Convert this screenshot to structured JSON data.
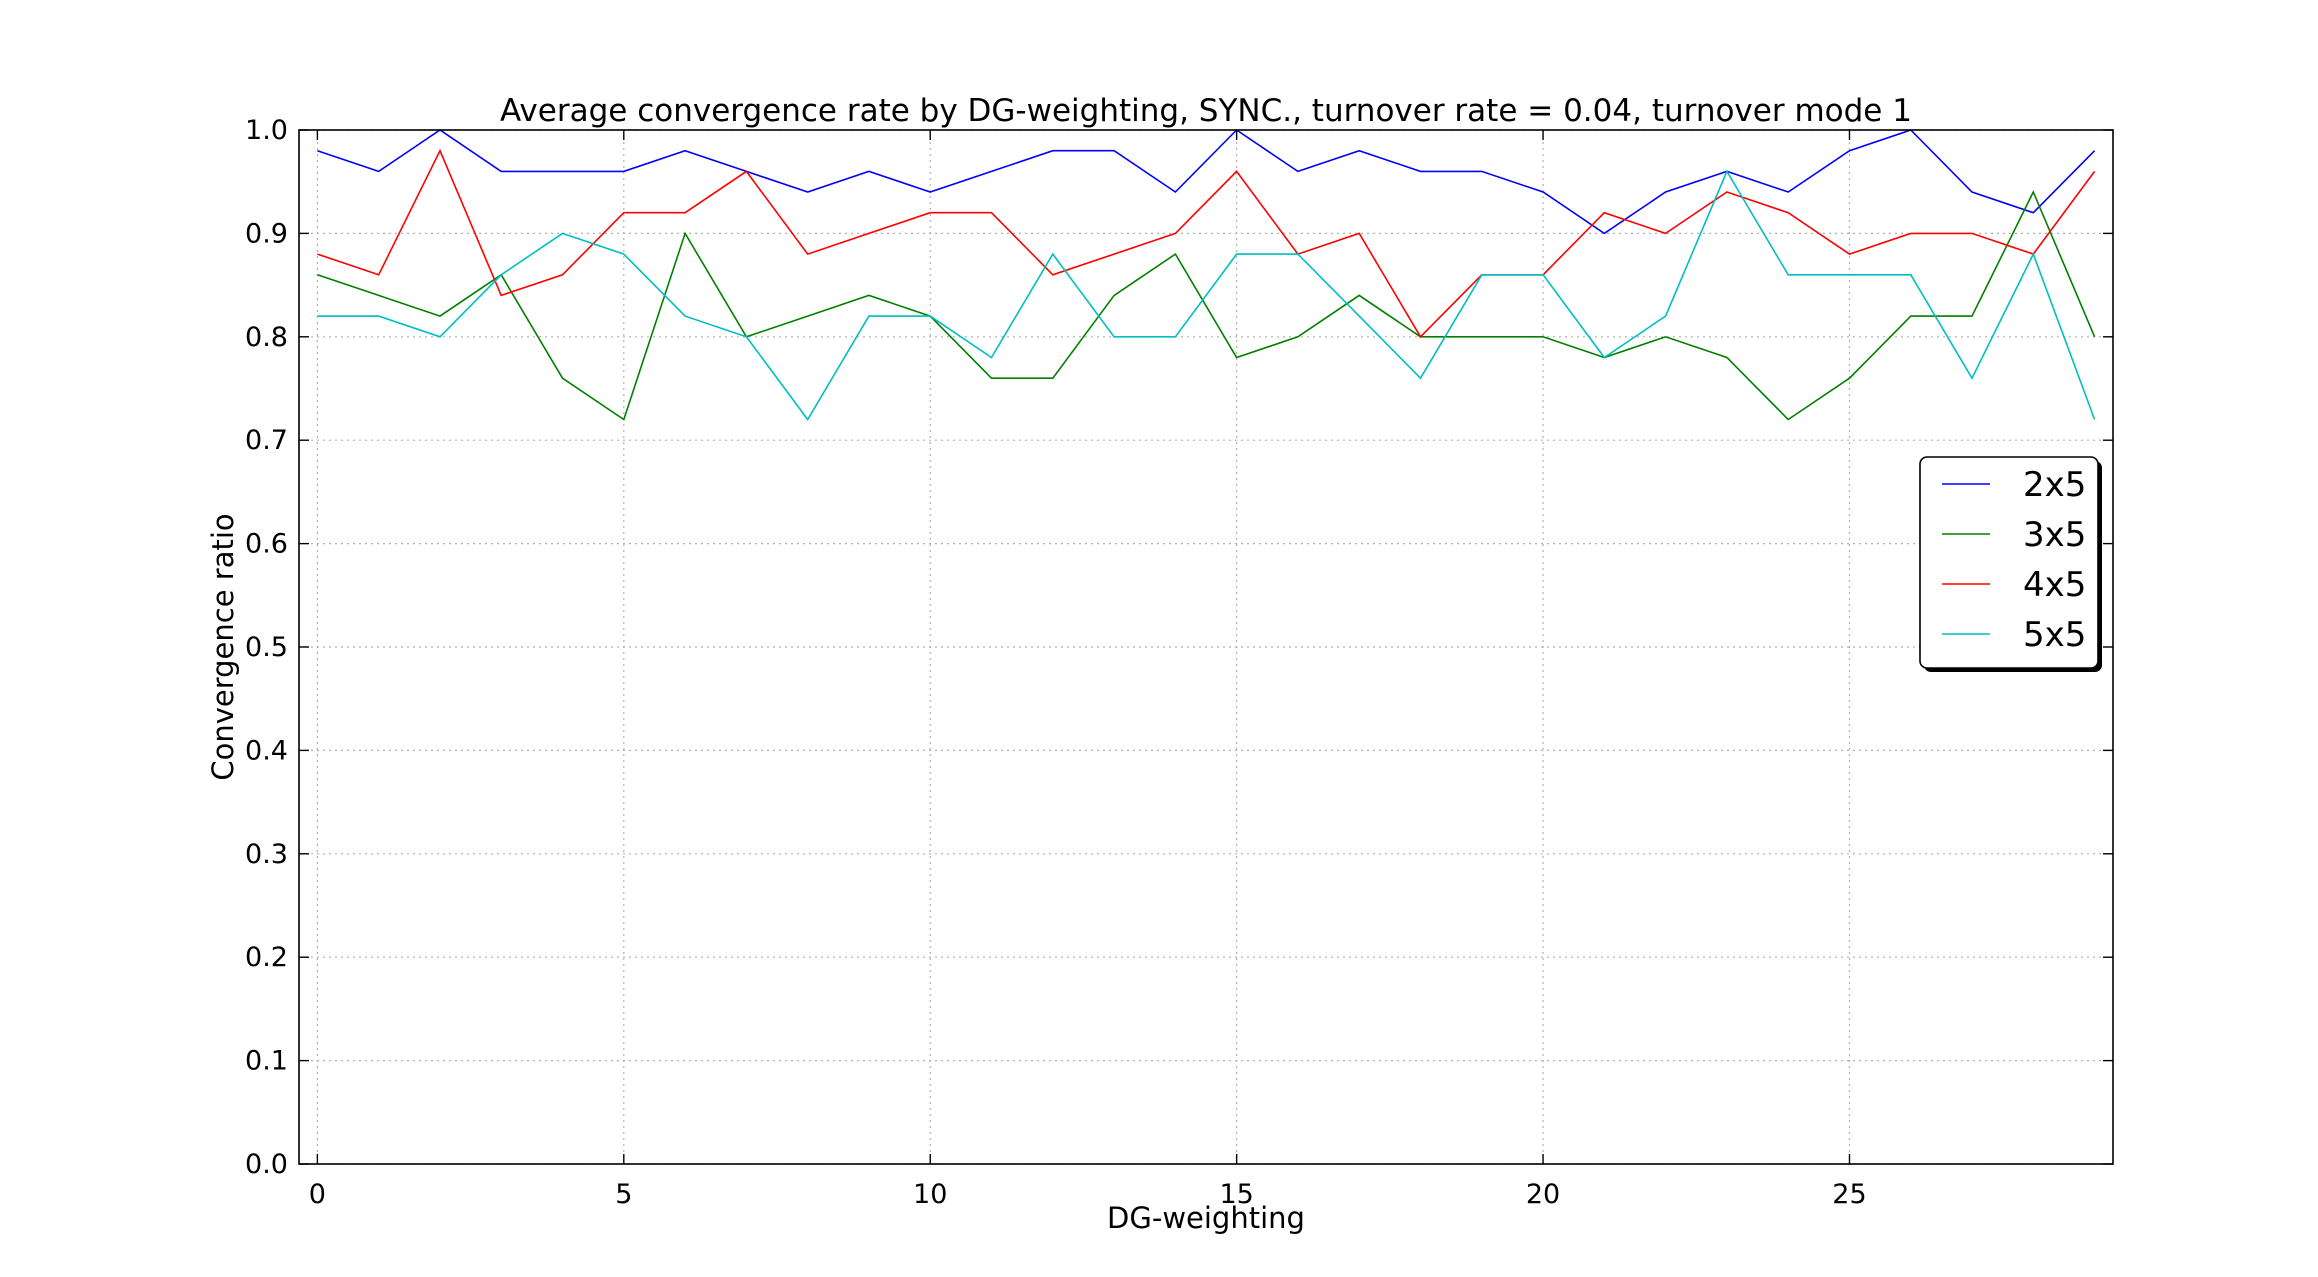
{
  "chart_data": {
    "type": "line",
    "title": "Average convergence rate by DG-weighting, SYNC., turnover rate = 0.04, turnover mode 1",
    "xlabel": "DG-weighting",
    "ylabel": "Convergence ratio",
    "xlim": [
      -0.3,
      29.3
    ],
    "ylim": [
      0.0,
      1.0
    ],
    "xticks": [
      0,
      5,
      10,
      15,
      20,
      25
    ],
    "xtick_labels": [
      "0",
      "5",
      "10",
      "15",
      "20",
      "25"
    ],
    "yticks": [
      0.0,
      0.1,
      0.2,
      0.3,
      0.4,
      0.5,
      0.6,
      0.7,
      0.8,
      0.9,
      1.0
    ],
    "ytick_labels": [
      "0.0",
      "0.1",
      "0.2",
      "0.3",
      "0.4",
      "0.5",
      "0.6",
      "0.7",
      "0.8",
      "0.9",
      "1.0"
    ],
    "grid": true,
    "legend_position": "right",
    "x": [
      0,
      1,
      2,
      3,
      4,
      5,
      6,
      7,
      8,
      9,
      10,
      11,
      12,
      13,
      14,
      15,
      16,
      17,
      18,
      19,
      20,
      21,
      22,
      23,
      24,
      25,
      26,
      27,
      28,
      29
    ],
    "series": [
      {
        "name": "2x5",
        "color": "#0000ff",
        "values": [
          0.98,
          0.96,
          1.0,
          0.96,
          0.96,
          0.96,
          0.98,
          0.96,
          0.94,
          0.96,
          0.94,
          0.96,
          0.98,
          0.98,
          0.94,
          1.0,
          0.96,
          0.98,
          0.96,
          0.96,
          0.94,
          0.9,
          0.94,
          0.96,
          0.94,
          0.98,
          1.0,
          0.94,
          0.92,
          0.98
        ]
      },
      {
        "name": "3x5",
        "color": "#008000",
        "values": [
          0.86,
          0.84,
          0.82,
          0.86,
          0.76,
          0.72,
          0.9,
          0.8,
          0.82,
          0.84,
          0.82,
          0.76,
          0.76,
          0.84,
          0.88,
          0.78,
          0.8,
          0.84,
          0.8,
          0.8,
          0.8,
          0.78,
          0.8,
          0.78,
          0.72,
          0.76,
          0.82,
          0.82,
          0.94,
          0.8
        ]
      },
      {
        "name": "4x5",
        "color": "#ff0000",
        "values": [
          0.88,
          0.86,
          0.98,
          0.84,
          0.86,
          0.92,
          0.92,
          0.96,
          0.88,
          0.9,
          0.92,
          0.92,
          0.86,
          0.88,
          0.9,
          0.96,
          0.88,
          0.9,
          0.8,
          0.86,
          0.86,
          0.92,
          0.9,
          0.94,
          0.92,
          0.88,
          0.9,
          0.9,
          0.88,
          0.96
        ]
      },
      {
        "name": "5x5",
        "color": "#00bfbf",
        "values": [
          0.82,
          0.82,
          0.8,
          0.86,
          0.9,
          0.88,
          0.82,
          0.8,
          0.72,
          0.82,
          0.82,
          0.78,
          0.88,
          0.8,
          0.8,
          0.88,
          0.88,
          0.82,
          0.76,
          0.86,
          0.86,
          0.78,
          0.82,
          0.96,
          0.86,
          0.86,
          0.86,
          0.76,
          0.88,
          0.72
        ]
      }
    ]
  }
}
